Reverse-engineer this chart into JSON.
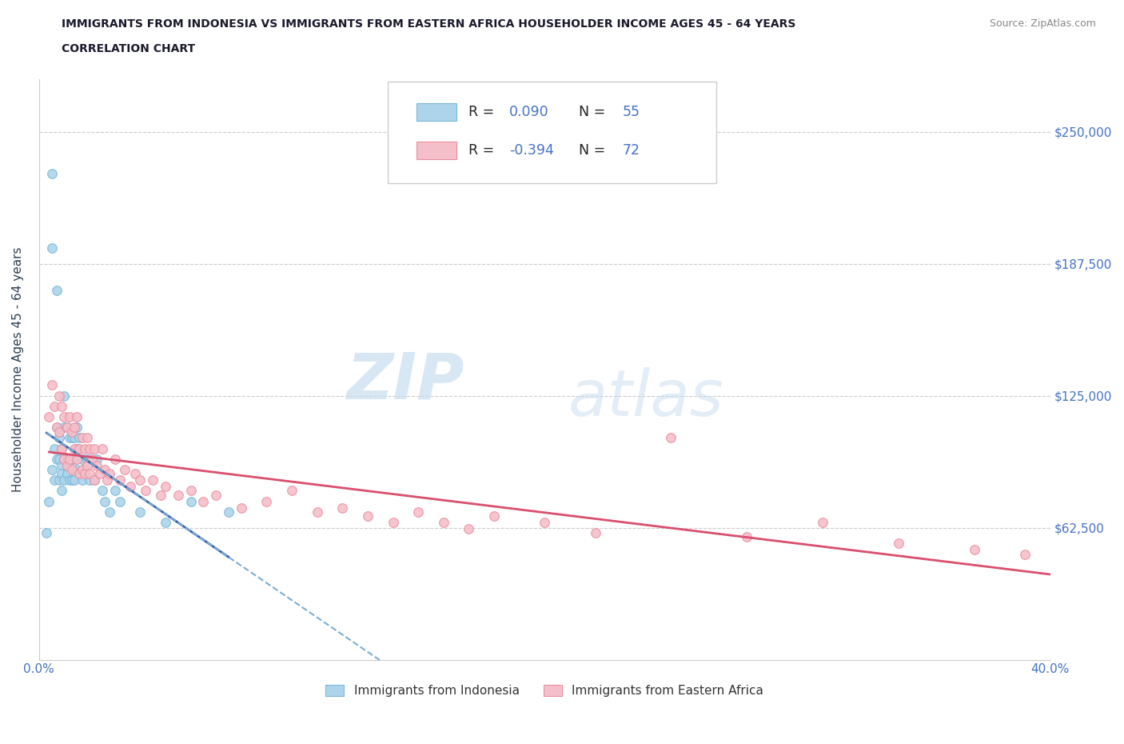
{
  "title_line1": "IMMIGRANTS FROM INDONESIA VS IMMIGRANTS FROM EASTERN AFRICA HOUSEHOLDER INCOME AGES 45 - 64 YEARS",
  "title_line2": "CORRELATION CHART",
  "source_text": "Source: ZipAtlas.com",
  "ylabel": "Householder Income Ages 45 - 64 years",
  "xlim": [
    0.0,
    0.4
  ],
  "ylim": [
    0,
    275000
  ],
  "yticks": [
    62500,
    125000,
    187500,
    250000
  ],
  "ytick_labels": [
    "$62,500",
    "$125,000",
    "$187,500",
    "$250,000"
  ],
  "xticks": [
    0.0,
    0.05,
    0.1,
    0.15,
    0.2,
    0.25,
    0.3,
    0.35,
    0.4
  ],
  "xtick_labels": [
    "0.0%",
    "",
    "",
    "",
    "",
    "",
    "",
    "",
    "40.0%"
  ],
  "indonesia_color": "#7ab8d9",
  "indonesia_color_fill": "#add4ea",
  "eastern_africa_color": "#e88fa0",
  "eastern_africa_color_fill": "#f5bfc9",
  "trend_indonesia_solid_color": "#3a5fa8",
  "trend_indonesia_dashed_color": "#7aadd4",
  "trend_eastern_africa_color": "#d94f6e",
  "R_indonesia": 0.09,
  "N_indonesia": 55,
  "R_eastern_africa": -0.394,
  "N_eastern_africa": 72,
  "watermark_zip": "ZIP",
  "watermark_atlas": "atlas",
  "background_color": "#ffffff",
  "grid_color": "#cccccc",
  "title_color": "#1a1a2e",
  "axis_label_color": "#2c3e50",
  "tick_color": "#4472c4",
  "indonesia_scatter_x": [
    0.003,
    0.004,
    0.005,
    0.005,
    0.005,
    0.006,
    0.006,
    0.007,
    0.007,
    0.007,
    0.008,
    0.008,
    0.008,
    0.009,
    0.009,
    0.009,
    0.009,
    0.01,
    0.01,
    0.01,
    0.01,
    0.011,
    0.011,
    0.011,
    0.012,
    0.012,
    0.012,
    0.013,
    0.013,
    0.013,
    0.014,
    0.014,
    0.014,
    0.015,
    0.015,
    0.015,
    0.016,
    0.016,
    0.017,
    0.017,
    0.018,
    0.019,
    0.02,
    0.021,
    0.022,
    0.023,
    0.025,
    0.026,
    0.028,
    0.03,
    0.032,
    0.04,
    0.05,
    0.06,
    0.075
  ],
  "indonesia_scatter_y": [
    60000,
    75000,
    230000,
    195000,
    90000,
    100000,
    85000,
    175000,
    110000,
    95000,
    105000,
    95000,
    85000,
    100000,
    92000,
    88000,
    80000,
    125000,
    110000,
    95000,
    85000,
    110000,
    95000,
    88000,
    105000,
    95000,
    85000,
    105000,
    95000,
    85000,
    105000,
    95000,
    85000,
    110000,
    100000,
    90000,
    105000,
    88000,
    95000,
    85000,
    90000,
    95000,
    85000,
    95000,
    85000,
    95000,
    80000,
    75000,
    70000,
    80000,
    75000,
    70000,
    65000,
    75000,
    70000
  ],
  "eastern_africa_scatter_x": [
    0.004,
    0.005,
    0.006,
    0.007,
    0.008,
    0.008,
    0.009,
    0.009,
    0.01,
    0.01,
    0.011,
    0.011,
    0.012,
    0.012,
    0.013,
    0.013,
    0.014,
    0.014,
    0.015,
    0.015,
    0.016,
    0.016,
    0.017,
    0.017,
    0.018,
    0.018,
    0.019,
    0.019,
    0.02,
    0.02,
    0.021,
    0.022,
    0.022,
    0.023,
    0.024,
    0.025,
    0.026,
    0.027,
    0.028,
    0.03,
    0.032,
    0.034,
    0.036,
    0.038,
    0.04,
    0.042,
    0.045,
    0.048,
    0.05,
    0.055,
    0.06,
    0.065,
    0.07,
    0.08,
    0.09,
    0.1,
    0.11,
    0.12,
    0.13,
    0.14,
    0.15,
    0.16,
    0.17,
    0.18,
    0.2,
    0.22,
    0.25,
    0.28,
    0.31,
    0.34,
    0.37,
    0.39
  ],
  "eastern_africa_scatter_y": [
    115000,
    130000,
    120000,
    110000,
    125000,
    108000,
    120000,
    100000,
    115000,
    95000,
    110000,
    92000,
    115000,
    95000,
    108000,
    90000,
    110000,
    100000,
    115000,
    95000,
    100000,
    88000,
    105000,
    90000,
    100000,
    88000,
    105000,
    92000,
    100000,
    88000,
    95000,
    100000,
    85000,
    92000,
    88000,
    100000,
    90000,
    85000,
    88000,
    95000,
    85000,
    90000,
    82000,
    88000,
    85000,
    80000,
    85000,
    78000,
    82000,
    78000,
    80000,
    75000,
    78000,
    72000,
    75000,
    80000,
    70000,
    72000,
    68000,
    65000,
    70000,
    65000,
    62000,
    68000,
    65000,
    60000,
    105000,
    58000,
    65000,
    55000,
    52000,
    50000
  ]
}
